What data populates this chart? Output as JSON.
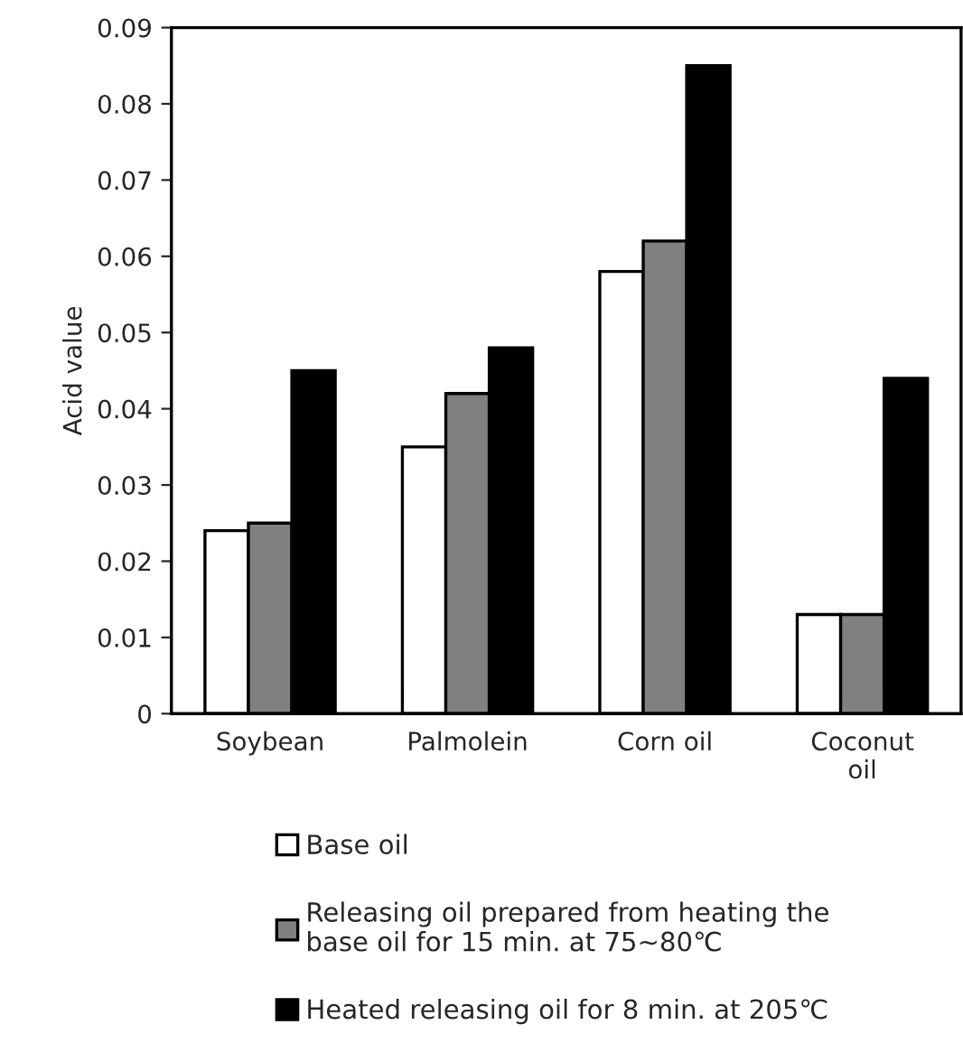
{
  "chart_data": {
    "type": "bar",
    "ylabel": "Acid value",
    "categories": [
      "Soybean",
      "Palmolein",
      "Corn oil",
      "Coconut\noil"
    ],
    "series": [
      {
        "name": "Base oil",
        "color": "#ffffff",
        "values": [
          0.024,
          0.035,
          0.058,
          0.013
        ]
      },
      {
        "name": "Releasing oil prepared from heating the\nbase oil for 15 min. at 75~80℃",
        "color": "#808080",
        "values": [
          0.025,
          0.042,
          0.062,
          0.013
        ]
      },
      {
        "name": "Heated releasing oil for 8 min. at 205℃",
        "color": "#000000",
        "values": [
          0.045,
          0.048,
          0.085,
          0.044
        ]
      }
    ],
    "ylim": [
      0,
      0.09
    ],
    "yticks": [
      0,
      0.01,
      0.02,
      0.03,
      0.04,
      0.05,
      0.06,
      0.07,
      0.08,
      0.09
    ],
    "grid": false,
    "legend": "bottom"
  }
}
